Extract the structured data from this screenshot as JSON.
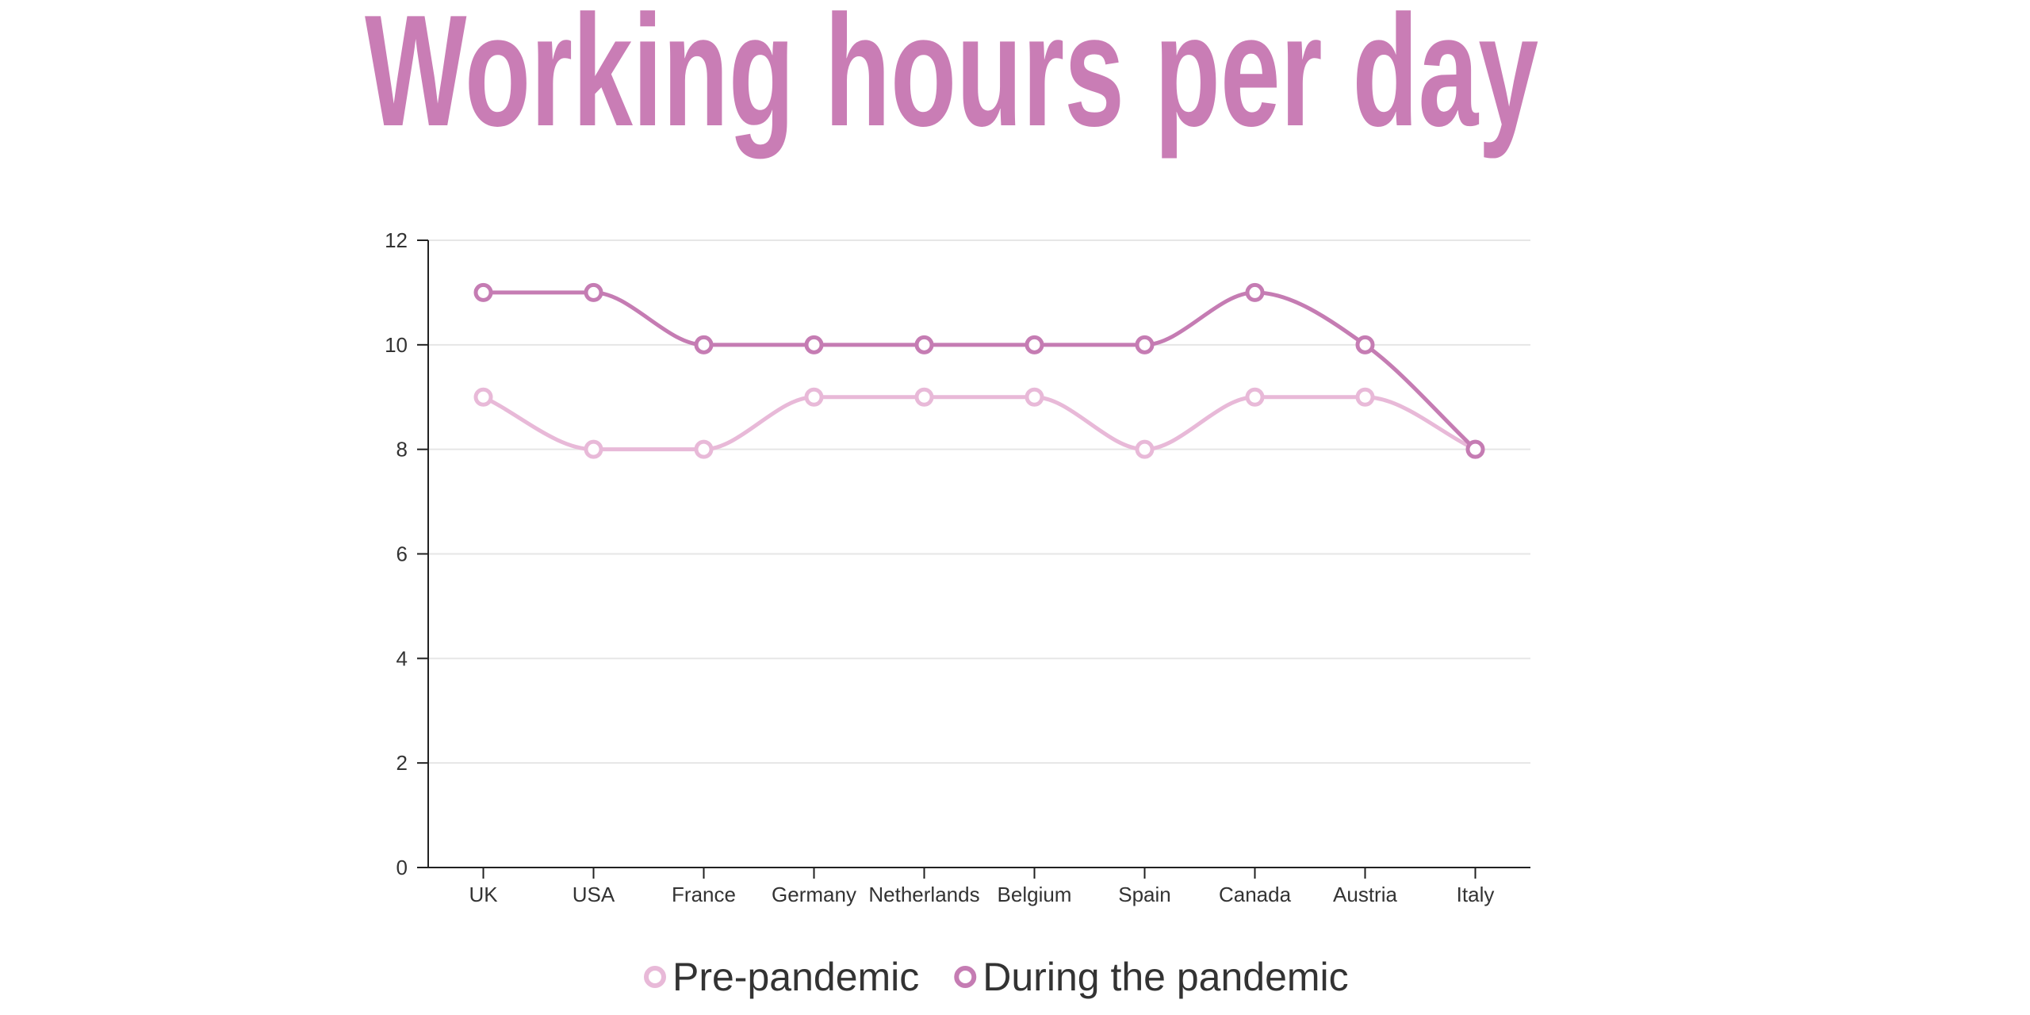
{
  "chart_data": {
    "type": "line",
    "title": "Working hours per day",
    "categories": [
      "UK",
      "USA",
      "France",
      "Germany",
      "Netherlands",
      "Belgium",
      "Spain",
      "Canada",
      "Austria",
      "Italy"
    ],
    "series": [
      {
        "name": "Pre-pandemic",
        "values": [
          9,
          8,
          8,
          9,
          9,
          9,
          8,
          9,
          9,
          8
        ],
        "color": "#e8b9d8"
      },
      {
        "name": "During the pandemic",
        "values": [
          11,
          11,
          10,
          10,
          10,
          10,
          10,
          11,
          10,
          8
        ],
        "color": "#c57cb3"
      }
    ],
    "y_ticks": [
      "0",
      "2",
      "4",
      "6",
      "8",
      "10",
      "12"
    ],
    "ylim": [
      0,
      12
    ],
    "grid": true,
    "legend_position": "bottom-center",
    "title_color": "#c97db5",
    "axis_color": "#222222",
    "grid_color": "#e6e6e6",
    "xlabel": "",
    "ylabel": ""
  }
}
